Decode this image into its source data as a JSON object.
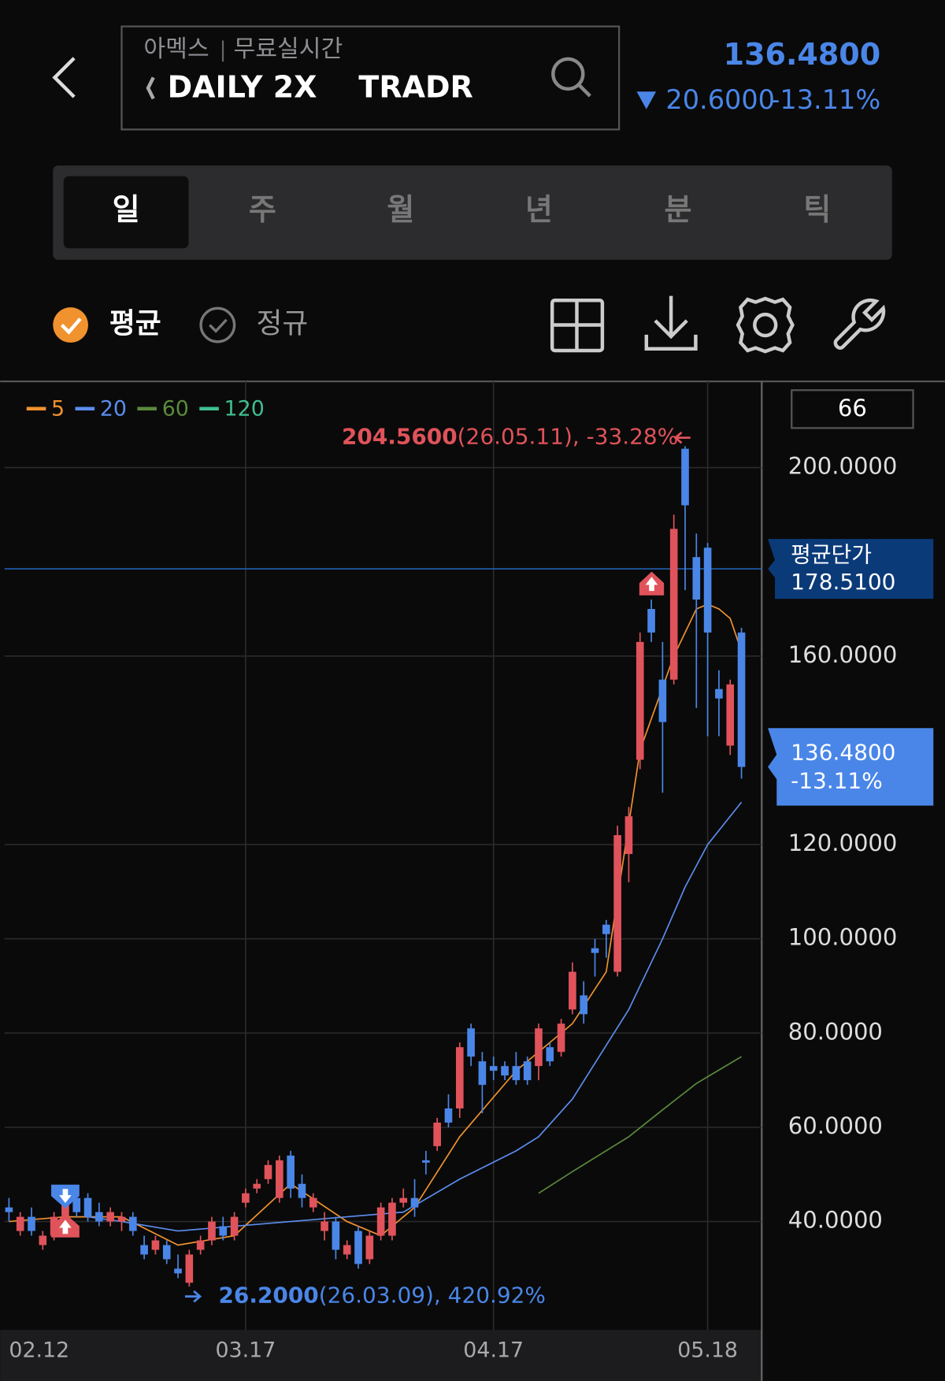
{
  "header": {
    "exchange": "아멕스",
    "feed": "무료실시간",
    "symbol": "DAILY 2X    TRADR",
    "price": "136.4800",
    "change": "20.6000",
    "change_rate": "-13.11%"
  },
  "tabs": [
    "일",
    "주",
    "월",
    "년",
    "분",
    "틱"
  ],
  "toggles": [
    "평균",
    "정규"
  ],
  "chart_data": {
    "type": "candlestick",
    "categories": [
      "02.12",
      null,
      null,
      null,
      null,
      null,
      null,
      null,
      null,
      null,
      null,
      null,
      null,
      null,
      null,
      null,
      null,
      null,
      null,
      null,
      null,
      "03.17",
      null,
      null,
      null,
      null,
      null,
      null,
      null,
      null,
      null,
      null,
      null,
      null,
      null,
      null,
      null,
      null,
      null,
      null,
      null,
      null,
      null,
      "04.17",
      null,
      null,
      null,
      null,
      null,
      null,
      null,
      null,
      null,
      null,
      null,
      null,
      null,
      null,
      null,
      null,
      null,
      null,
      "05.18",
      null,
      null,
      null
    ],
    "open": [
      43,
      38,
      41,
      35,
      37,
      41,
      45,
      45,
      42,
      40,
      40,
      41,
      35,
      34,
      35,
      30,
      27,
      34,
      36,
      39,
      37,
      44,
      47,
      49,
      45,
      54,
      48,
      43,
      38,
      40,
      33,
      38,
      32,
      37,
      37,
      44,
      45,
      53,
      56,
      64,
      64,
      81,
      74,
      73,
      73,
      73,
      74,
      73,
      77,
      76,
      85,
      88,
      98,
      103,
      93,
      118,
      138,
      170,
      155,
      155,
      204,
      181,
      183,
      153,
      141,
      165
    ],
    "high": [
      45,
      42,
      43,
      38,
      42,
      46,
      47,
      46,
      44,
      43,
      42,
      42,
      37,
      37,
      36,
      33,
      34,
      37,
      41,
      41,
      42,
      47,
      49,
      53,
      54,
      55,
      50,
      46,
      42,
      41,
      36,
      39,
      38,
      44,
      45,
      47,
      49,
      55,
      62,
      67,
      78,
      82,
      76,
      75,
      74,
      76,
      75,
      82,
      78,
      83,
      95,
      91,
      100,
      104,
      124,
      128,
      165,
      172,
      163,
      190,
      204.56,
      186,
      184,
      157,
      155,
      166
    ],
    "low": [
      40,
      37,
      37,
      34,
      36,
      40,
      41,
      40,
      39,
      39,
      38,
      37,
      32,
      33,
      31,
      28,
      26.2,
      33,
      35,
      36,
      36,
      43,
      46,
      48,
      44,
      45,
      43,
      42,
      36,
      32,
      32,
      30,
      31,
      36,
      36,
      43,
      41,
      50,
      55,
      60,
      62,
      73,
      63,
      70,
      70,
      69,
      69,
      70,
      73,
      75,
      84,
      82,
      92,
      96,
      92,
      112,
      136,
      163,
      131,
      154,
      174,
      149,
      143,
      143,
      139,
      134
    ],
    "close": [
      42,
      41,
      38,
      37,
      41,
      44,
      42,
      41,
      40,
      42,
      41,
      38,
      33,
      36,
      32,
      29,
      33,
      36,
      40,
      37,
      41,
      46,
      48,
      52,
      53,
      47,
      45,
      45,
      40,
      34,
      35,
      31,
      37,
      43,
      44,
      45,
      43,
      52.5,
      61,
      61,
      77,
      75,
      69,
      72,
      71,
      70,
      70,
      81,
      74,
      82,
      93,
      84,
      97,
      101,
      122,
      126,
      163,
      165,
      146,
      187,
      192,
      172,
      165,
      151,
      154,
      136.48
    ],
    "up_color": "#e0535a",
    "down_color": "#4a86e8",
    "series": [
      {
        "name": "5",
        "color": "#f0922e",
        "x": [
          0,
          5,
          10,
          15,
          20,
          25,
          30,
          33,
          36,
          40,
          45,
          50,
          53,
          56,
          59,
          61,
          62,
          63,
          64,
          65
        ],
        "values": [
          40,
          41,
          41,
          35,
          37,
          48,
          40,
          37,
          43,
          58,
          72,
          82,
          93,
          140,
          160,
          170,
          171,
          170,
          168,
          161
        ]
      },
      {
        "name": "20",
        "color": "#5b8dee",
        "x": [
          7,
          10,
          15,
          20,
          25,
          30,
          35,
          40,
          45,
          47,
          50,
          55,
          58,
          60,
          62,
          65
        ],
        "values": [
          41,
          40,
          38,
          39,
          40,
          41,
          42,
          49,
          55,
          58,
          66,
          85,
          100,
          111,
          120,
          129
        ]
      },
      {
        "name": "60",
        "color": "#5a8a3c",
        "x": [
          47,
          50,
          55,
          58,
          61,
          65
        ],
        "values": [
          46,
          50.6,
          58,
          63.7,
          69.3,
          75
        ]
      },
      {
        "name": "120",
        "color": "#3fbf8f",
        "x": [],
        "values": []
      }
    ],
    "ylim": [
      17,
      218.3
    ],
    "yticks": [
      {
        "value": 40,
        "label": "40.0000"
      },
      {
        "value": 60,
        "label": "60.0000"
      },
      {
        "value": 80,
        "label": "80.0000"
      },
      {
        "value": 100,
        "label": "100.0000"
      },
      {
        "value": 120,
        "label": "120.0000"
      },
      {
        "value": 160,
        "label": "160.0000"
      },
      {
        "value": 200,
        "label": "200.0000"
      }
    ],
    "grid": true,
    "period_count": "66",
    "high_mark": {
      "value": 204.56,
      "label": "204.5600",
      "detail": "(26.05.11), -33.28%"
    },
    "low_mark": {
      "value": 26.2,
      "label": "26.2000",
      "detail": "(26.03.09), 420.92%"
    },
    "average_price": {
      "title": "평균단가",
      "value": 178.51,
      "label": "178.5100"
    },
    "current_price": {
      "value": 136.48,
      "label": "136.4800",
      "change": "-13.11%"
    }
  }
}
